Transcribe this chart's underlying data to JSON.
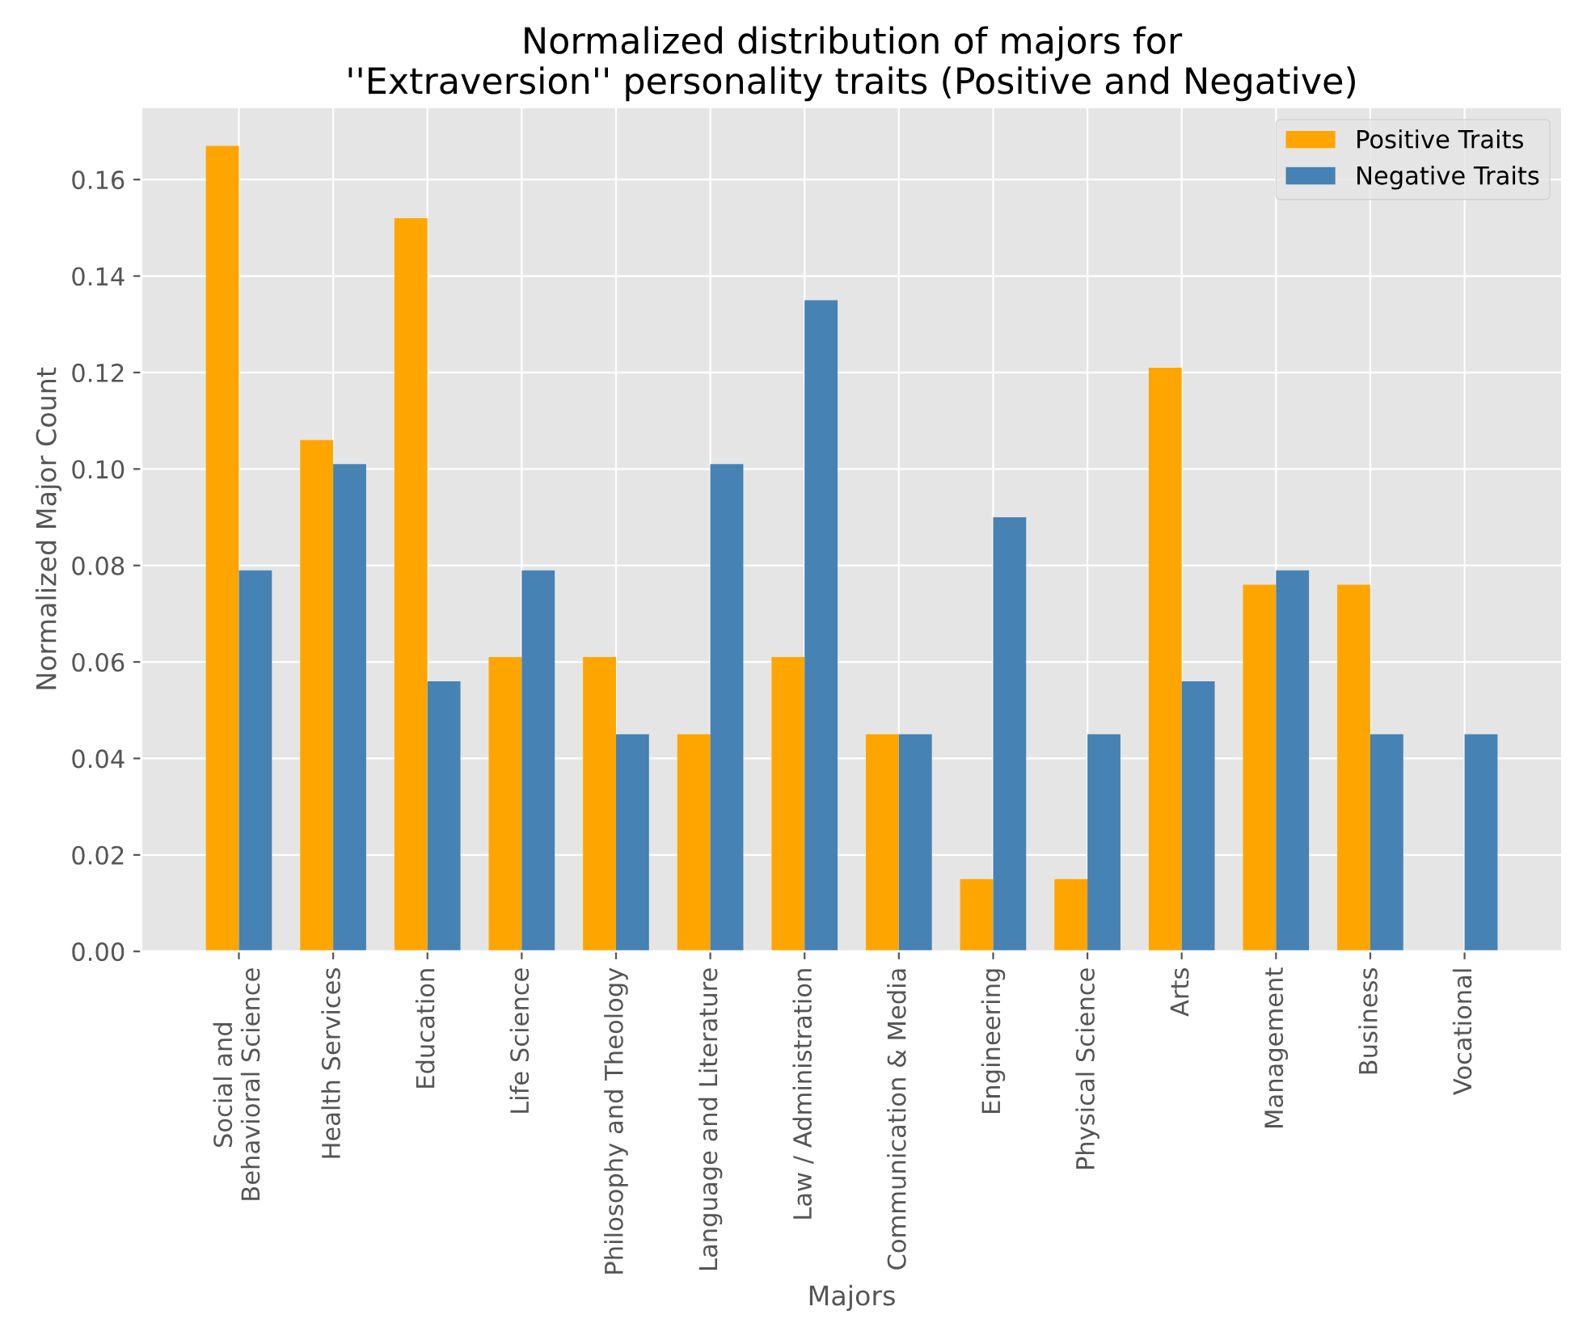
{
  "chart_data": {
    "type": "bar",
    "title": "Normalized distribution of majors for\n''Extraversion'' personality traits (Positive and Negative)",
    "xlabel": "Majors",
    "ylabel": "Normalized Major Count",
    "categories": [
      "Social and\nBehavioral Science",
      "Health Services",
      "Education",
      "Life Science",
      "Philosophy and Theology",
      "Language and Literature",
      "Law / Administration",
      "Communication & Media",
      "Engineering",
      "Physical Science",
      "Arts",
      "Management",
      "Business",
      "Vocational"
    ],
    "series": [
      {
        "name": "Positive Traits",
        "color": "#ffa500",
        "values": [
          0.167,
          0.106,
          0.152,
          0.061,
          0.061,
          0.045,
          0.061,
          0.045,
          0.015,
          0.015,
          0.121,
          0.076,
          0.076,
          0
        ]
      },
      {
        "name": "Negative Traits",
        "color": "#4682b4",
        "values": [
          0.079,
          0.101,
          0.056,
          0.079,
          0.045,
          0.101,
          0.135,
          0.045,
          0.09,
          0.045,
          0.056,
          0.079,
          0.045,
          0.045
        ]
      }
    ],
    "ylim": [
      0,
      0.175
    ],
    "yticks": [
      {
        "value": 0,
        "label": "0.00"
      },
      {
        "value": 0.02,
        "label": "0.02"
      },
      {
        "value": 0.04,
        "label": "0.04"
      },
      {
        "value": 0.06,
        "label": "0.06"
      },
      {
        "value": 0.08,
        "label": "0.08"
      },
      {
        "value": 0.1,
        "label": "0.10"
      },
      {
        "value": 0.12,
        "label": "0.12"
      },
      {
        "value": 0.14,
        "label": "0.14"
      },
      {
        "value": 0.16,
        "label": "0.16"
      }
    ],
    "grid": true,
    "legend": "top right"
  }
}
